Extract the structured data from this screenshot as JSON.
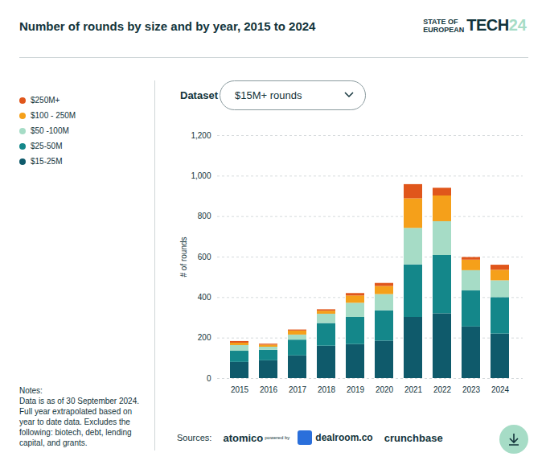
{
  "chart_data": {
    "type": "bar",
    "title": "Number of rounds by size and by year, 2015 to 2024",
    "logo": {
      "line1": "STATE OF",
      "line2": "EUROPEAN",
      "word": "TECH",
      "year": "24"
    },
    "dataset_label": "Dataset",
    "dataset_value": "$15M+ rounds",
    "ylabel": "# of rounds",
    "categories": [
      "2015",
      "2016",
      "2017",
      "2018",
      "2019",
      "2020",
      "2021",
      "2022",
      "2023",
      "2024"
    ],
    "series": [
      {
        "name": "$250M+",
        "color": "#e0561b",
        "values": [
          8,
          5,
          5,
          7,
          12,
          15,
          70,
          38,
          13,
          25
        ]
      },
      {
        "name": "$100 - 250M",
        "color": "#f5a01a",
        "values": [
          12,
          10,
          20,
          15,
          36,
          40,
          146,
          127,
          52,
          52
        ]
      },
      {
        "name": "$50 -100M",
        "color": "#a6dcc6",
        "values": [
          28,
          15,
          25,
          46,
          70,
          80,
          180,
          167,
          100,
          83
        ]
      },
      {
        "name": "$25-50M",
        "color": "#14878a",
        "values": [
          55,
          52,
          78,
          112,
          134,
          150,
          260,
          288,
          178,
          180
        ]
      },
      {
        "name": "$15-25M",
        "color": "#0f5a6b",
        "values": [
          80,
          88,
          112,
          160,
          168,
          185,
          302,
          320,
          255,
          220
        ]
      }
    ],
    "stacked": true,
    "ylim": [
      0,
      1200
    ],
    "yticks": [
      0,
      200,
      400,
      600,
      800,
      1000,
      1200
    ],
    "grid": true,
    "legend": "left",
    "notes": [
      "Notes:",
      "Data is as of 30 September 2024.",
      "Full year extrapolated based on",
      "year to date data. Excludes the",
      "following: biotech, debt, lending",
      "capital, and grants."
    ],
    "sources": {
      "label": "Sources:",
      "items": [
        "atomico",
        "powered by",
        "dealroom.co",
        "crunchbase"
      ]
    }
  }
}
